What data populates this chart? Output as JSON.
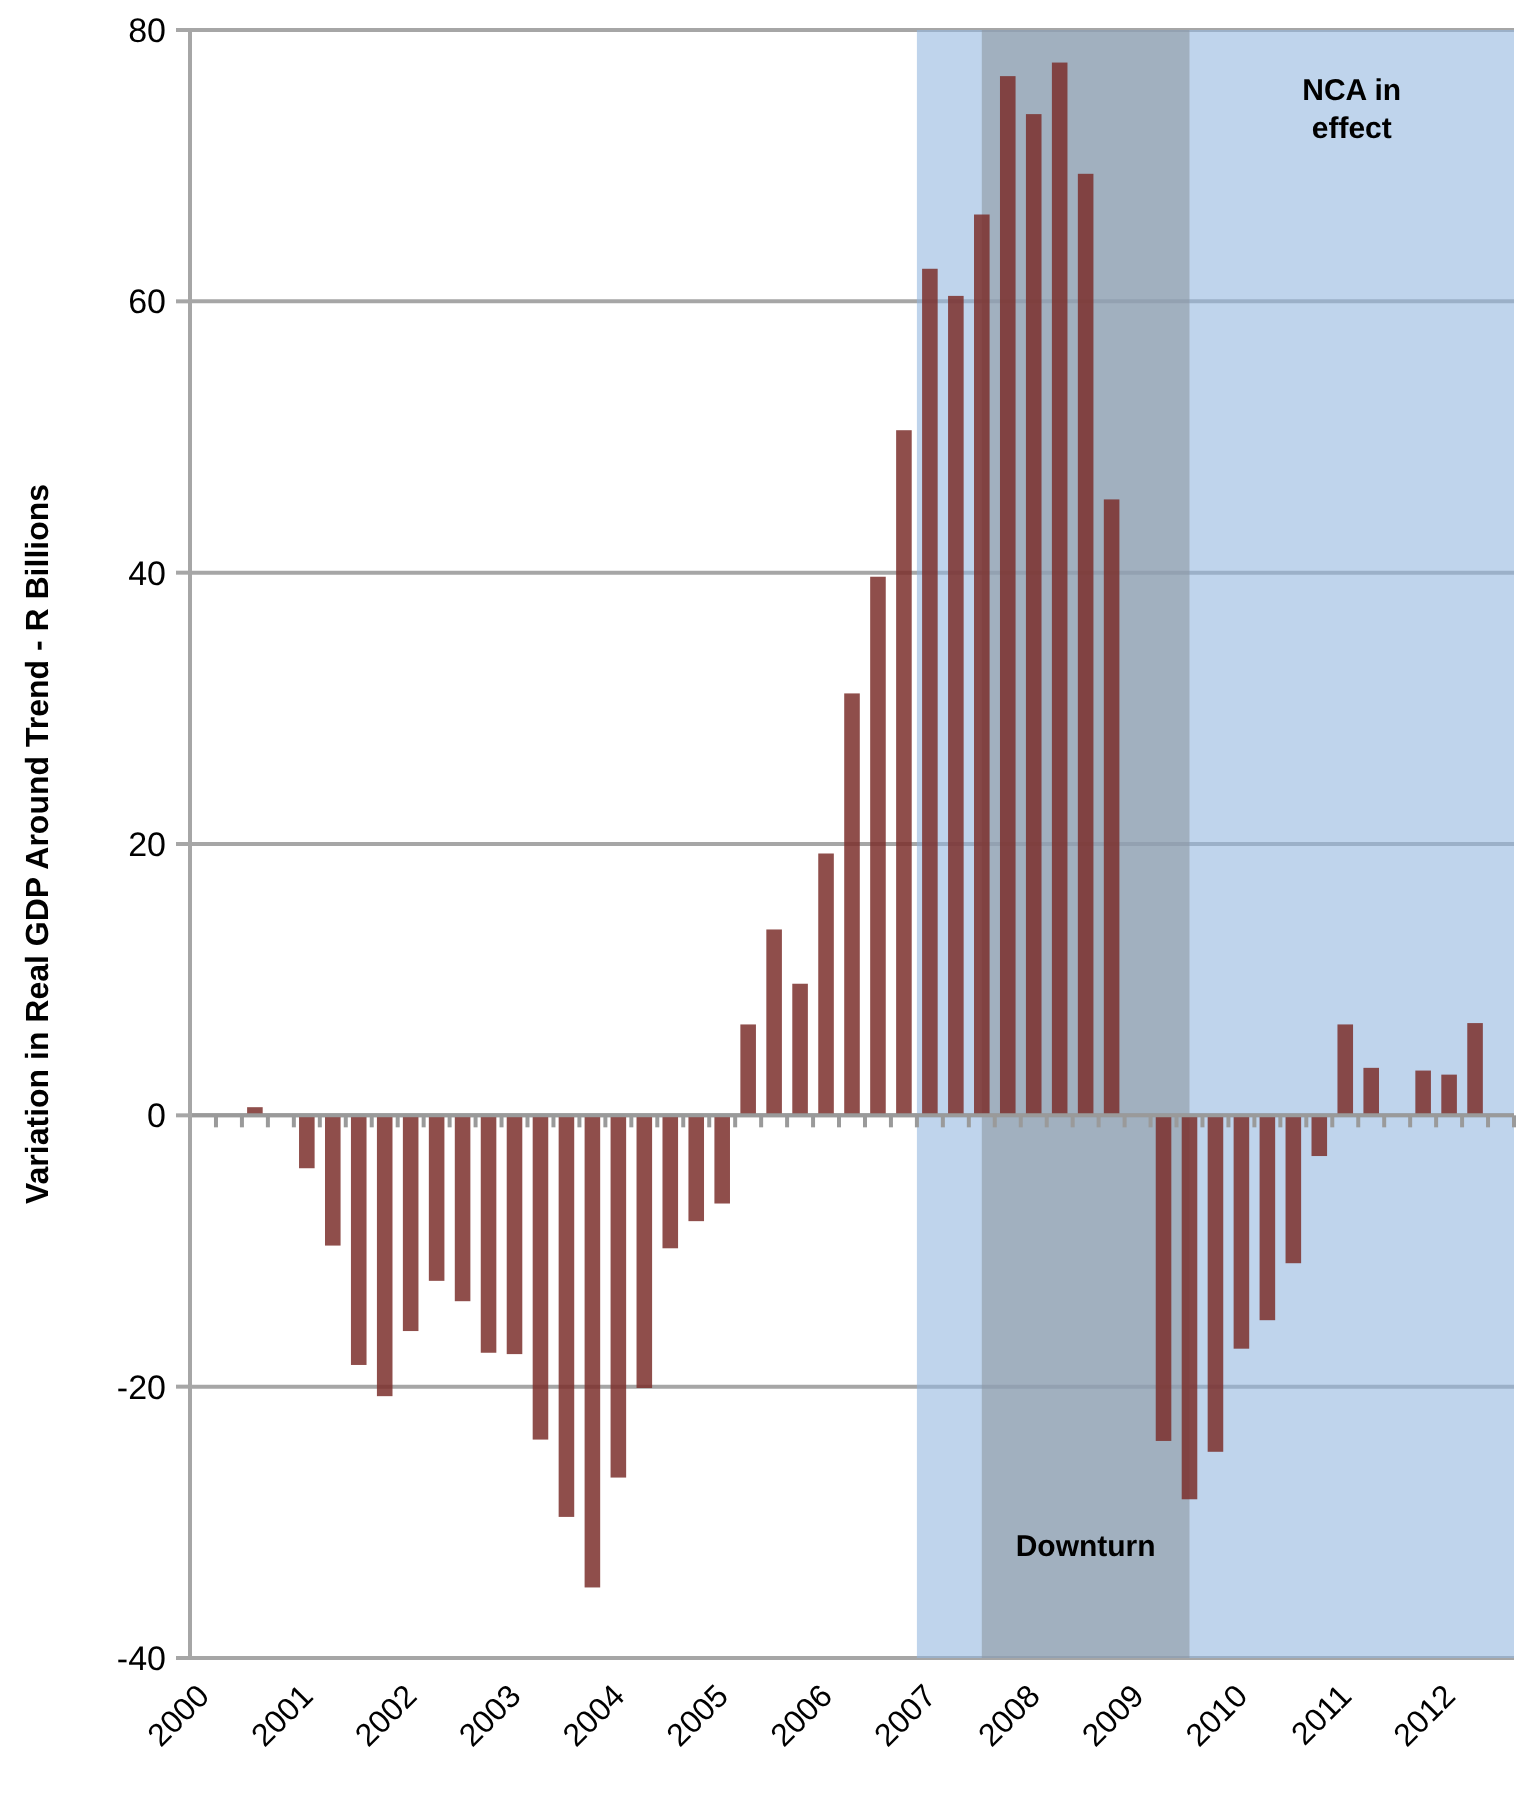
{
  "chart_data": {
    "type": "bar",
    "ylabel": "Variation in Real GDP Around Trend - R Billions",
    "x": [
      2000.5,
      2001,
      2001.25,
      2001.5,
      2001.75,
      2002,
      2002.25,
      2002.5,
      2002.75,
      2003,
      2003.25,
      2003.5,
      2003.75,
      2004,
      2004.25,
      2004.5,
      2004.75,
      2005,
      2005.25,
      2005.5,
      2005.75,
      2006,
      2006.25,
      2006.5,
      2006.75,
      2007,
      2007.25,
      2007.5,
      2007.75,
      2008,
      2008.25,
      2008.5,
      2008.75,
      2009.25,
      2009.5,
      2009.75,
      2010,
      2010.25,
      2010.5,
      2010.75,
      2011,
      2011.25,
      2011.75,
      2012,
      2012.25
    ],
    "values": [
      0.6,
      -3.9,
      -9.6,
      -18.4,
      -20.7,
      -15.9,
      -12.2,
      -13.7,
      -17.5,
      -17.6,
      -23.9,
      -29.6,
      -34.8,
      -26.7,
      -20.1,
      -9.8,
      -7.8,
      -6.5,
      6.7,
      13.7,
      9.7,
      19.3,
      31.1,
      39.7,
      50.5,
      62.4,
      60.4,
      66.4,
      76.6,
      73.8,
      77.6,
      69.4,
      45.4,
      -24.0,
      -28.3,
      -24.8,
      -17.2,
      -15.1,
      -10.9,
      -3.0,
      6.7,
      3.5,
      3.3,
      3.0,
      6.8
    ],
    "color": "#7b2f2c",
    "xlim": [
      1999.875,
      2012.625
    ],
    "xticks": [
      2000,
      2001,
      2002,
      2003,
      2004,
      2005,
      2006,
      2007,
      2008,
      2009,
      2010,
      2011,
      2012
    ],
    "ylim": [
      -40,
      80
    ],
    "yticks": [
      -40,
      -20,
      0,
      20,
      40,
      60,
      80
    ],
    "grid": "y",
    "bands": [
      {
        "axis": "x",
        "from": 2006.875,
        "to": 2012.625,
        "label": "NCA in effect",
        "color": "#94b8e0"
      },
      {
        "axis": "x",
        "from": 2007.5,
        "to": 2009.5,
        "label": "Downturn",
        "color": "#8d98a2"
      }
    ]
  }
}
